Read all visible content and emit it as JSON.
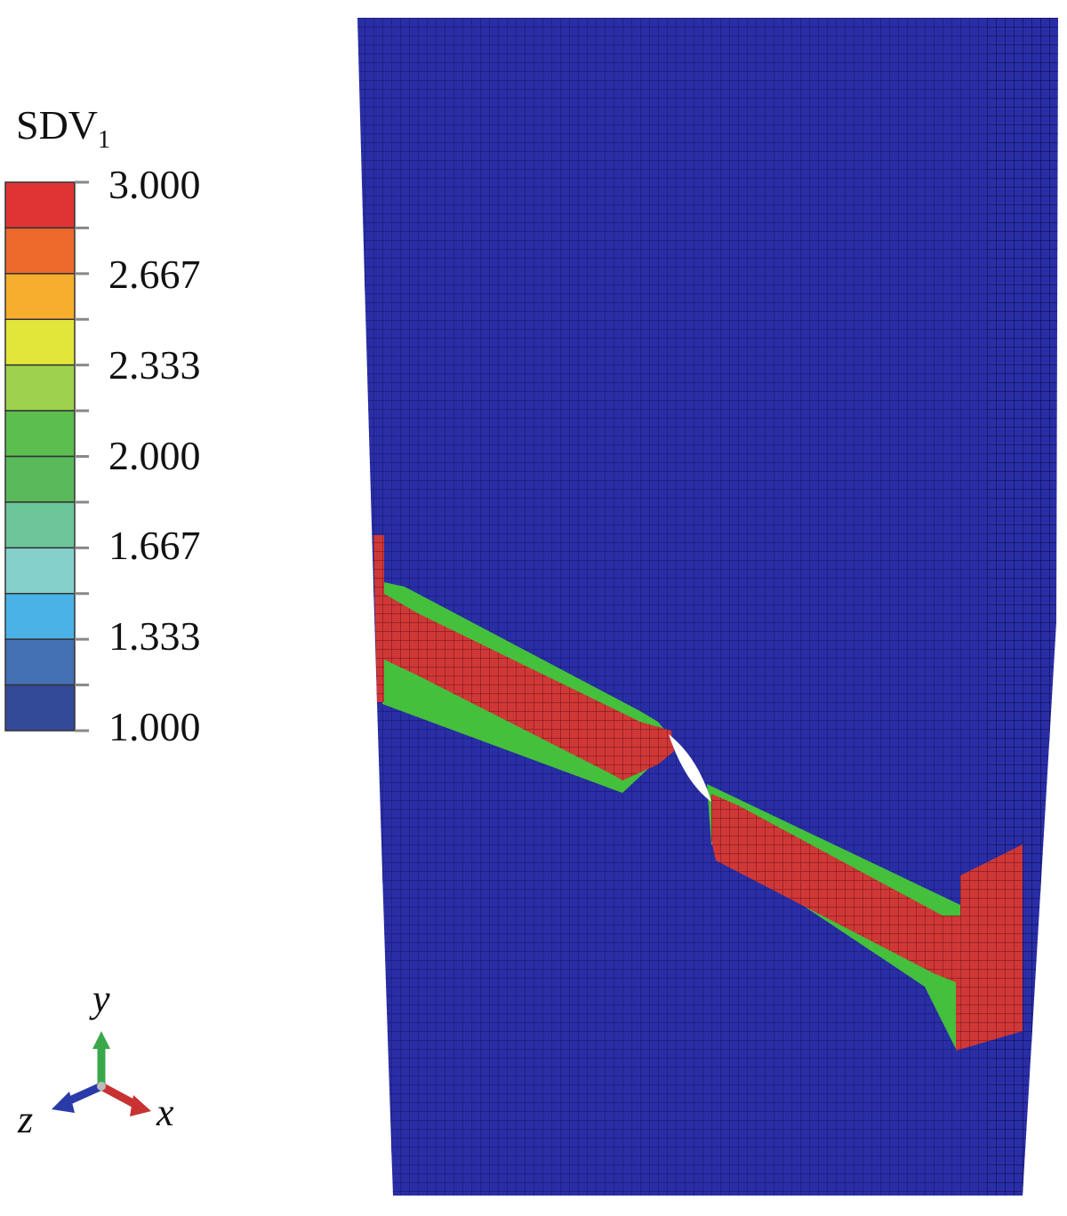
{
  "legend": {
    "title": "SDV",
    "title_sub": "1",
    "ticks": [
      "3.000",
      "2.667",
      "2.333",
      "2.000",
      "1.667",
      "1.333",
      "1.000"
    ],
    "colors": [
      "#e03434",
      "#ee6a2c",
      "#f6ae2c",
      "#e2e63a",
      "#9ed24e",
      "#5cbe4e",
      "#5ab95a",
      "#6cc69a",
      "#86d0cc",
      "#4ab2e6",
      "#4470b4",
      "#334a98"
    ]
  },
  "axes": {
    "y": "y",
    "x": "x",
    "z": "z"
  },
  "model": {
    "base_color": "#2a2ea6",
    "band_color": "#d03838",
    "edge_color": "#44c03c",
    "crack_color": "#ffffff"
  }
}
